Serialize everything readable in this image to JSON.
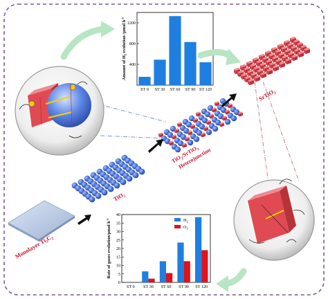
{
  "labels": {
    "monolayer": "Monolayer Ti",
    "monolayer_sub": "3",
    "monolayer_sub2": "C",
    "monolayer_sub3": "2",
    "tio2": "TiO",
    "tio2_sub": "2",
    "hetero_line1": "TiO",
    "hetero_line1_sub": "2",
    "hetero_line1_rest": "/SrTiO",
    "hetero_line1_sub2": "3",
    "hetero_line2": "Heterojunction",
    "srtio3": "SrTiO",
    "srtio3_sub": "3"
  },
  "colors": {
    "sphere_blue": "#4a73d6",
    "cube_red": "#e0525a",
    "bar_blue": "#1e7fe0",
    "bar_red": "#e0121b",
    "frame": "#7a5a9a",
    "arrow_green": "#b8e5c3",
    "label_red": "#c8102e"
  },
  "chart_data": [
    {
      "type": "bar",
      "categories": [
        "ST 0",
        "ST 30",
        "ST 60",
        "ST 90",
        "ST 120"
      ],
      "values": [
        160,
        490,
        1330,
        830,
        440
      ],
      "ylabel": "Amount of H₂ evolution /μmol h⁻¹",
      "ylim": [
        0,
        1400
      ],
      "yticks": [
        400,
        800,
        1200
      ]
    },
    {
      "type": "bar",
      "categories": [
        "ST 0",
        "ST 30",
        "ST 60",
        "ST 90",
        "ST 120"
      ],
      "series": [
        {
          "name": "H₂",
          "values": [
            0,
            6.5,
            12.5,
            23.5,
            38.5
          ],
          "color": "#1e7fe0"
        },
        {
          "name": "O₂",
          "values": [
            0,
            2.2,
            5.5,
            12.5,
            19
          ]
        }
      ],
      "ylabel": "Rate of gases evolution/μmol h⁻¹",
      "ylim": [
        0,
        40
      ],
      "yticks": [
        0,
        5,
        10,
        15,
        20,
        25,
        30,
        35,
        40
      ],
      "legend": "top-left",
      "legend_items": [
        "H₂",
        "O₂"
      ]
    }
  ],
  "chart_text": {
    "top_ylabel": "Amount of H",
    "top_ylabel_sub": "2",
    "top_ylabel_rest": " evolution /μmol h",
    "top_ylabel_sup": "-1",
    "bottom_ylabel": "Rate of gases evolution/μmol h",
    "bottom_ylabel_sup": "-1",
    "legend_h": "H",
    "legend_h_sub": "2",
    "legend_o": "O",
    "legend_o_sub": "2"
  }
}
